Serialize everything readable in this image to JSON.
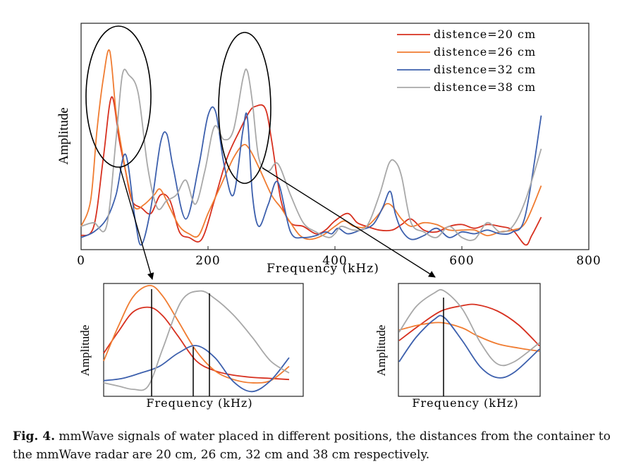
{
  "chart_data": [
    {
      "id": "main",
      "type": "line",
      "xlabel": "Frequency (kHz)",
      "ylabel": "Amplitude",
      "xlim": [
        0,
        800
      ],
      "ylim": [
        0,
        1
      ],
      "xticks": [
        0,
        200,
        400,
        600,
        800
      ],
      "yticks_shown": false,
      "grid": false,
      "legend_position": "top-right",
      "series": [
        {
          "name": "distence=20 cm",
          "color": "#d7301f",
          "x": [
            0,
            20,
            35,
            48,
            60,
            70,
            80,
            95,
            110,
            125,
            140,
            155,
            170,
            190,
            210,
            230,
            250,
            265,
            275,
            290,
            300,
            315,
            330,
            350,
            370,
            385,
            400,
            420,
            435,
            450,
            470,
            490,
            505,
            520,
            540,
            560,
            580,
            600,
            620,
            640,
            660,
            680,
            700,
            710,
            725
          ],
          "y": [
            0.03,
            0.08,
            0.45,
            0.78,
            0.55,
            0.38,
            0.22,
            0.18,
            0.15,
            0.25,
            0.22,
            0.05,
            0.02,
            0.01,
            0.22,
            0.45,
            0.6,
            0.7,
            0.73,
            0.72,
            0.55,
            0.22,
            0.1,
            0.08,
            0.04,
            0.06,
            0.11,
            0.15,
            0.1,
            0.08,
            0.06,
            0.06,
            0.09,
            0.12,
            0.06,
            0.05,
            0.08,
            0.09,
            0.07,
            0.09,
            0.08,
            0.06,
            -0.02,
            0.03,
            0.13
          ]
        },
        {
          "name": "distence=26 cm",
          "color": "#f07c31",
          "x": [
            0,
            15,
            25,
            35,
            45,
            55,
            65,
            75,
            85,
            100,
            115,
            125,
            140,
            155,
            170,
            185,
            200,
            220,
            240,
            255,
            265,
            280,
            300,
            315,
            330,
            345,
            360,
            380,
            400,
            415,
            430,
            450,
            470,
            480,
            490,
            505,
            520,
            540,
            560,
            580,
            600,
            620,
            640,
            660,
            680,
            700,
            725
          ],
          "y": [
            0.08,
            0.22,
            0.6,
            0.88,
            1.03,
            0.7,
            0.48,
            0.3,
            0.18,
            0.2,
            0.25,
            0.28,
            0.18,
            0.08,
            0.04,
            0.03,
            0.15,
            0.3,
            0.45,
            0.52,
            0.5,
            0.4,
            0.25,
            0.18,
            0.1,
            0.03,
            0.01,
            0.03,
            0.08,
            0.11,
            0.08,
            0.08,
            0.15,
            0.2,
            0.19,
            0.12,
            0.08,
            0.1,
            0.09,
            0.06,
            0.06,
            0.06,
            0.03,
            0.05,
            0.06,
            0.1,
            0.3
          ]
        },
        {
          "name": "distence=32 cm",
          "color": "#3d60ad",
          "x": [
            0,
            20,
            40,
            55,
            70,
            85,
            95,
            110,
            125,
            135,
            145,
            165,
            185,
            200,
            212,
            225,
            240,
            255,
            262,
            270,
            280,
            295,
            310,
            330,
            350,
            370,
            385,
            395,
            405,
            420,
            440,
            460,
            475,
            487,
            495,
            505,
            520,
            540,
            560,
            580,
            600,
            620,
            640,
            660,
            680,
            700,
            725
          ],
          "y": [
            0.02,
            0.05,
            0.12,
            0.25,
            0.47,
            0.12,
            -0.02,
            0.18,
            0.53,
            0.58,
            0.4,
            0.12,
            0.4,
            0.68,
            0.7,
            0.42,
            0.25,
            0.6,
            0.67,
            0.25,
            0.08,
            0.2,
            0.32,
            0.05,
            0.02,
            0.03,
            0.05,
            0.04,
            0.07,
            0.04,
            0.06,
            0.09,
            0.18,
            0.27,
            0.15,
            0.06,
            0.01,
            0.03,
            0.07,
            0.02,
            0.05,
            0.04,
            0.06,
            0.04,
            0.05,
            0.14,
            0.68
          ]
        },
        {
          "name": "distence=38 cm",
          "color": "#a8a8a8",
          "x": [
            0,
            20,
            40,
            55,
            65,
            75,
            90,
            105,
            120,
            135,
            150,
            165,
            180,
            195,
            210,
            225,
            240,
            255,
            262,
            270,
            280,
            295,
            310,
            330,
            350,
            370,
            390,
            400,
            410,
            430,
            450,
            470,
            485,
            495,
            505,
            520,
            540,
            560,
            580,
            600,
            620,
            640,
            660,
            680,
            700,
            725
          ],
          "y": [
            0.08,
            0.1,
            0.08,
            0.55,
            0.9,
            0.9,
            0.8,
            0.4,
            0.18,
            0.22,
            0.25,
            0.33,
            0.2,
            0.38,
            0.62,
            0.55,
            0.6,
            0.88,
            0.92,
            0.75,
            0.45,
            0.38,
            0.42,
            0.25,
            0.1,
            0.05,
            0.02,
            0.04,
            0.08,
            0.06,
            0.08,
            0.25,
            0.42,
            0.43,
            0.35,
            0.1,
            0.05,
            0.02,
            0.08,
            0.02,
            0.01,
            0.1,
            0.05,
            0.08,
            0.22,
            0.5
          ]
        }
      ]
    },
    {
      "id": "inset-left",
      "type": "line",
      "xlabel": "Frequency (kHz)",
      "ylabel": "Amplitude",
      "xlim": [
        0,
        1
      ],
      "ylim": [
        0,
        1
      ],
      "grid": false,
      "series": [
        {
          "name": "distence=20 cm",
          "color": "#d7301f",
          "x": [
            0,
            0.08,
            0.16,
            0.25,
            0.32,
            0.4,
            0.5,
            0.6,
            0.7,
            0.8,
            0.9,
            1.0
          ],
          "y": [
            0.4,
            0.6,
            0.78,
            0.82,
            0.74,
            0.56,
            0.33,
            0.24,
            0.2,
            0.18,
            0.17,
            0.16
          ]
        },
        {
          "name": "distence=26 cm",
          "color": "#f07c31",
          "x": [
            0,
            0.08,
            0.16,
            0.25,
            0.32,
            0.4,
            0.5,
            0.6,
            0.7,
            0.8,
            0.9,
            1.0
          ],
          "y": [
            0.33,
            0.65,
            0.92,
            1.02,
            0.92,
            0.7,
            0.42,
            0.24,
            0.16,
            0.13,
            0.15,
            0.28
          ]
        },
        {
          "name": "distence=32 cm",
          "color": "#3d60ad",
          "x": [
            0,
            0.1,
            0.2,
            0.3,
            0.4,
            0.5,
            0.6,
            0.7,
            0.8,
            0.9,
            1.0
          ],
          "y": [
            0.15,
            0.17,
            0.22,
            0.28,
            0.4,
            0.47,
            0.36,
            0.14,
            0.05,
            0.15,
            0.36
          ]
        },
        {
          "name": "distence=38 cm",
          "color": "#a8a8a8",
          "x": [
            0,
            0.08,
            0.16,
            0.24,
            0.32,
            0.42,
            0.52,
            0.6,
            0.7,
            0.8,
            0.9,
            1.0
          ],
          "y": [
            0.13,
            0.1,
            0.07,
            0.1,
            0.45,
            0.88,
            0.97,
            0.9,
            0.75,
            0.55,
            0.33,
            0.22
          ]
        }
      ]
    },
    {
      "id": "inset-right",
      "type": "line",
      "xlabel": "Frequency (kHz)",
      "ylabel": "Amplitude",
      "xlim": [
        0,
        1
      ],
      "ylim": [
        0,
        1
      ],
      "grid": false,
      "series": [
        {
          "name": "distence=20 cm",
          "color": "#d7301f",
          "x": [
            0,
            0.15,
            0.3,
            0.45,
            0.55,
            0.7,
            0.85,
            1.0
          ],
          "y": [
            0.5,
            0.65,
            0.78,
            0.83,
            0.84,
            0.78,
            0.65,
            0.45
          ]
        },
        {
          "name": "distence=26 cm",
          "color": "#f07c31",
          "x": [
            0,
            0.15,
            0.3,
            0.45,
            0.55,
            0.7,
            0.85,
            1.0
          ],
          "y": [
            0.6,
            0.65,
            0.67,
            0.62,
            0.55,
            0.47,
            0.43,
            0.4
          ]
        },
        {
          "name": "distence=32 cm",
          "color": "#3d60ad",
          "x": [
            0,
            0.12,
            0.25,
            0.32,
            0.45,
            0.58,
            0.7,
            0.82,
            1.0
          ],
          "y": [
            0.3,
            0.53,
            0.7,
            0.72,
            0.5,
            0.25,
            0.15,
            0.2,
            0.42
          ]
        },
        {
          "name": "distence=38 cm",
          "color": "#a8a8a8",
          "x": [
            0,
            0.12,
            0.25,
            0.32,
            0.45,
            0.58,
            0.7,
            0.82,
            1.0
          ],
          "y": [
            0.58,
            0.82,
            0.95,
            0.97,
            0.8,
            0.48,
            0.28,
            0.3,
            0.48
          ]
        }
      ]
    }
  ],
  "caption": {
    "label": "Fig. 4.",
    "text": "mmWave signals of water placed in different positions, the distances from the container to the mmWave radar are 20 cm, 26 cm, 32 cm and 38 cm respectively."
  }
}
